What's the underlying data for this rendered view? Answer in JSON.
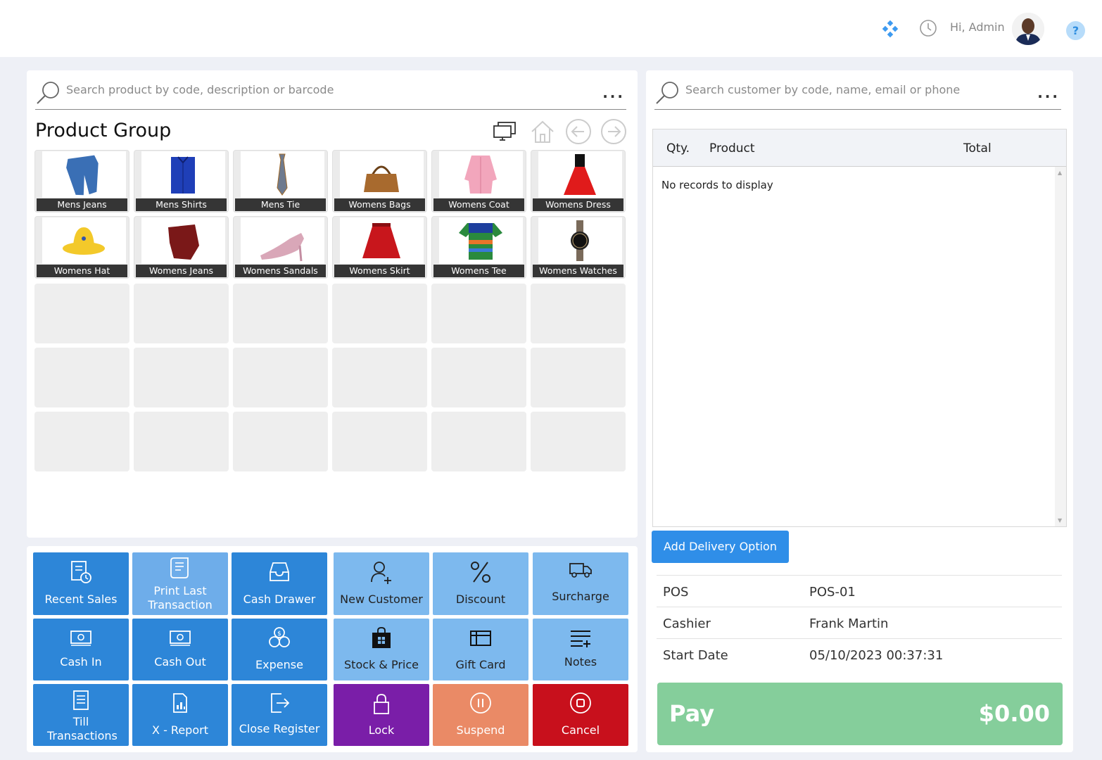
{
  "header": {
    "greeting": "Hi, Admin",
    "icons": [
      "apps-icon",
      "history-icon",
      "user-avatar",
      "help-icon"
    ],
    "help_symbol": "?"
  },
  "product_search": {
    "placeholder": "Search product by code, description or barcode",
    "more": "..."
  },
  "product_group": {
    "title": "Product Group",
    "nav_icons": [
      "display-icon",
      "home-icon",
      "back-arrow-icon",
      "forward-arrow-icon"
    ],
    "items": [
      {
        "label": "Mens Jeans",
        "color": "#3a6fb5"
      },
      {
        "label": "Mens Shirts",
        "color": "#1f3fb8"
      },
      {
        "label": "Mens Tie",
        "color": "#6e7a8e"
      },
      {
        "label": "Womens Bags",
        "color": "#a86a2e"
      },
      {
        "label": "Womens Coat",
        "color": "#f2a6bc"
      },
      {
        "label": "Womens Dress",
        "color": "#e01b1b"
      },
      {
        "label": "Womens Hat",
        "color": "#f3c92a"
      },
      {
        "label": "Womens Jeans",
        "color": "#7a1818"
      },
      {
        "label": "Womens Sandals",
        "color": "#d9a7b8"
      },
      {
        "label": "Womens Skirt",
        "color": "#c8161c"
      },
      {
        "label": "Womens Tee",
        "color": "#2a8a3e"
      },
      {
        "label": "Womens Watches",
        "color": "#222222"
      }
    ]
  },
  "actions": {
    "recent_sales": "Recent Sales",
    "print_last": "Print Last Transaction",
    "cash_drawer": "Cash Drawer",
    "new_customer": "New Customer",
    "discount": "Discount",
    "surcharge": "Surcharge",
    "cash_in": "Cash In",
    "cash_out": "Cash Out",
    "expense": "Expense",
    "stock_price": "Stock & Price",
    "gift_card": "Gift Card",
    "notes": "Notes",
    "till_transactions": "Till Transactions",
    "x_report": "X - Report",
    "close_register": "Close Register",
    "lock": "Lock",
    "suspend": "Suspend",
    "cancel": "Cancel"
  },
  "customer_search": {
    "placeholder": "Search customer by code, name, email or phone",
    "more": "..."
  },
  "cart": {
    "columns": {
      "qty": "Qty.",
      "product": "Product",
      "total": "Total"
    },
    "empty_message": "No records to display",
    "scroll_up": "▲",
    "scroll_down": "▼"
  },
  "delivery_button": "Add Delivery Option",
  "register_info": {
    "pos_label": "POS",
    "pos_value": "POS-01",
    "cashier_label": "Cashier",
    "cashier_value": "Frank Martin",
    "start_label": "Start Date",
    "start_value": "05/10/2023 00:37:31"
  },
  "pay": {
    "label": "Pay",
    "amount": "$0.00"
  },
  "colors": {
    "primary_blue": "#2d86d8",
    "light_blue": "#6eadea",
    "lock_purple": "#7a1ea8",
    "suspend_orange": "#ea8a66",
    "cancel_red": "#c8101c",
    "pay_green": "#85ce9b"
  }
}
